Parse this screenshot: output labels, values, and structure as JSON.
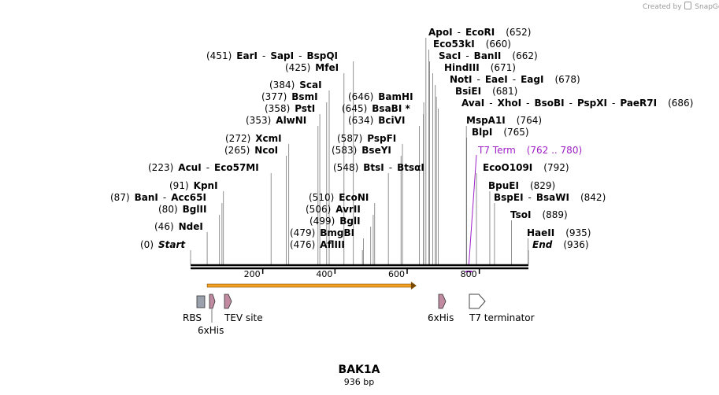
{
  "credit": {
    "text": "Created by",
    "brand": "SnapGene"
  },
  "map": {
    "name": "BAK1A",
    "length_label": "936 bp",
    "sequence_length": 936,
    "ticks": [
      {
        "pos": 200,
        "label": "200"
      },
      {
        "pos": 400,
        "label": "400"
      },
      {
        "pos": 600,
        "label": "600"
      },
      {
        "pos": 800,
        "label": "800"
      }
    ]
  },
  "sites": [
    {
      "pos": 0,
      "pos_label": "(0)",
      "names": [
        "Start"
      ],
      "terminal": true
    },
    {
      "pos": 46,
      "pos_label": "(46)",
      "names": [
        "NdeI"
      ]
    },
    {
      "pos": 80,
      "pos_label": "(80)",
      "names": [
        "BglII"
      ]
    },
    {
      "pos": 87,
      "pos_label": "(87)",
      "names": [
        "BanI",
        "Acc65I"
      ]
    },
    {
      "pos": 91,
      "pos_label": "(91)",
      "names": [
        "KpnI"
      ]
    },
    {
      "pos": 223,
      "pos_label": "(223)",
      "names": [
        "AcuI",
        "Eco57MI"
      ]
    },
    {
      "pos": 265,
      "pos_label": "(265)",
      "names": [
        "NcoI"
      ]
    },
    {
      "pos": 272,
      "pos_label": "(272)",
      "names": [
        "XcmI"
      ]
    },
    {
      "pos": 353,
      "pos_label": "(353)",
      "names": [
        "AlwNI"
      ]
    },
    {
      "pos": 358,
      "pos_label": "(358)",
      "names": [
        "PstI"
      ]
    },
    {
      "pos": 377,
      "pos_label": "(377)",
      "names": [
        "BsmI"
      ]
    },
    {
      "pos": 384,
      "pos_label": "(384)",
      "names": [
        "ScaI"
      ]
    },
    {
      "pos": 425,
      "pos_label": "(425)",
      "names": [
        "MfeI"
      ]
    },
    {
      "pos": 451,
      "pos_label": "(451)",
      "names": [
        "EarI",
        "SapI",
        "BspQI"
      ]
    },
    {
      "pos": 476,
      "pos_label": "(476)",
      "names": [
        "AflIII"
      ]
    },
    {
      "pos": 479,
      "pos_label": "(479)",
      "names": [
        "BmgBI"
      ]
    },
    {
      "pos": 499,
      "pos_label": "(499)",
      "names": [
        "BglI"
      ]
    },
    {
      "pos": 506,
      "pos_label": "(506)",
      "names": [
        "AvrII"
      ]
    },
    {
      "pos": 510,
      "pos_label": "(510)",
      "names": [
        "EcoNI"
      ]
    },
    {
      "pos": 548,
      "pos_label": "(548)",
      "names": [
        "BtsI",
        "BtsαI"
      ]
    },
    {
      "pos": 583,
      "pos_label": "(583)",
      "names": [
        "BseYI"
      ]
    },
    {
      "pos": 587,
      "pos_label": "(587)",
      "names": [
        "PspFI"
      ]
    },
    {
      "pos": 634,
      "pos_label": "(634)",
      "names": [
        "BciVI"
      ]
    },
    {
      "pos": 645,
      "pos_label": "(645)",
      "names": [
        "BsaBI *"
      ]
    },
    {
      "pos": 646,
      "pos_label": "(646)",
      "names": [
        "BamHI"
      ]
    },
    {
      "pos": 652,
      "pos_label": "(652)",
      "names": [
        "ApoI",
        "EcoRI"
      ]
    },
    {
      "pos": 660,
      "pos_label": "(660)",
      "names": [
        "Eco53kI"
      ]
    },
    {
      "pos": 662,
      "pos_label": "(662)",
      "names": [
        "SacI",
        "BanII"
      ]
    },
    {
      "pos": 671,
      "pos_label": "(671)",
      "names": [
        "HindIII"
      ]
    },
    {
      "pos": 678,
      "pos_label": "(678)",
      "names": [
        "NotI",
        "EaeI",
        "EagI"
      ]
    },
    {
      "pos": 681,
      "pos_label": "(681)",
      "names": [
        "BsiEI"
      ]
    },
    {
      "pos": 686,
      "pos_label": "(686)",
      "names": [
        "AvaI",
        "XhoI",
        "BsoBI",
        "PspXI",
        "PaeR7I"
      ]
    },
    {
      "pos": 764,
      "pos_label": "(764)",
      "names": [
        "MspA1I"
      ]
    },
    {
      "pos": 765,
      "pos_label": "(765)",
      "names": [
        "BlpI"
      ]
    },
    {
      "pos": 792,
      "pos_label": "(792)",
      "names": [
        "EcoO109I"
      ]
    },
    {
      "pos": 829,
      "pos_label": "(829)",
      "names": [
        "BpuEI"
      ]
    },
    {
      "pos": 842,
      "pos_label": "(842)",
      "names": [
        "BspEI",
        "BsaWI"
      ]
    },
    {
      "pos": 889,
      "pos_label": "(889)",
      "names": [
        "TsoI"
      ]
    },
    {
      "pos": 935,
      "pos_label": "(935)",
      "names": [
        "HaeII"
      ]
    },
    {
      "pos": 936,
      "pos_label": "(936)",
      "names": [
        "End"
      ],
      "terminal": true
    }
  ],
  "primer_site": {
    "name": "T7 Term",
    "range_label": "(762 .. 780)",
    "start": 762,
    "end": 780,
    "color": "#a020c8"
  },
  "orf": {
    "start": 46,
    "end": 626,
    "color": "#f5a020"
  },
  "features": [
    {
      "name": "RBS",
      "type": "rbs"
    },
    {
      "name": "6xHis",
      "type": "tag"
    },
    {
      "name": "TEV site",
      "type": "protease"
    },
    {
      "name": "6xHis",
      "type": "tag"
    },
    {
      "name": "T7 terminator",
      "type": "terminator"
    }
  ]
}
